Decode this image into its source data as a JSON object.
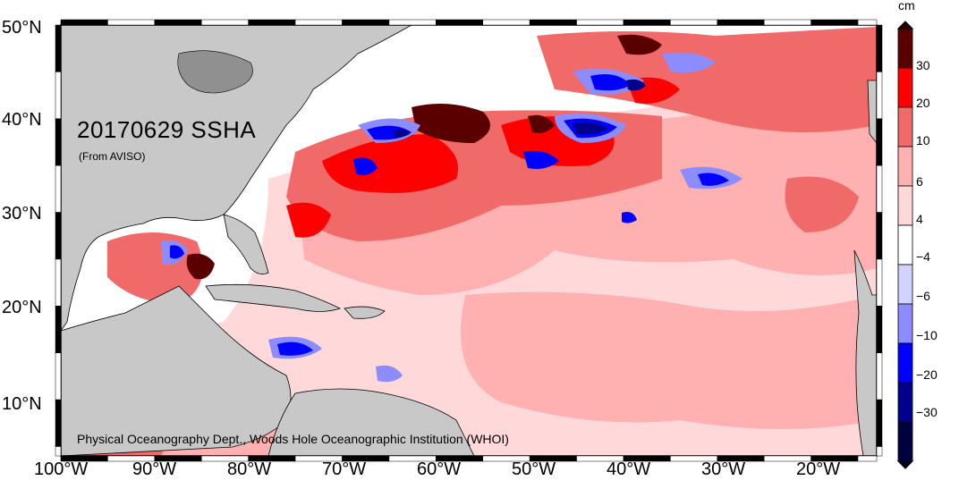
{
  "map": {
    "title": "20170629 SSHA",
    "subtitle": "(From AVISO)",
    "credit": "Physical Oceanography Dept., Woods Hole Oceanographic Institution (WHOI)",
    "lat_labels": [
      "50°N",
      "40°N",
      "30°N",
      "20°N",
      "10°N"
    ],
    "lon_labels": [
      "100°W",
      "90°W",
      "80°W",
      "70°W",
      "60°W",
      "50°W",
      "40°W",
      "30°W",
      "20°W"
    ],
    "colors": {
      "land": "#c8c8c8",
      "ocean_neutral": "#ffffff",
      "pos_4_6": "#ffd9d9",
      "pos_6_10": "#ffb0b0",
      "pos_10_20": "#f06a6a",
      "pos_20_30": "#ff0000",
      "pos_30_plus": "#5a0000",
      "neg_4_6": "#d2d2ff",
      "neg_6_10": "#8c8cff",
      "neg_10_20": "#0000ff",
      "neg_20_30": "#00008c",
      "neg_30_plus": "#000040"
    }
  },
  "colorbar": {
    "unit": "cm",
    "labels": [
      "30",
      "20",
      "10",
      "6",
      "4",
      "−4",
      "−6",
      "−10",
      "−20",
      "−30"
    ]
  }
}
